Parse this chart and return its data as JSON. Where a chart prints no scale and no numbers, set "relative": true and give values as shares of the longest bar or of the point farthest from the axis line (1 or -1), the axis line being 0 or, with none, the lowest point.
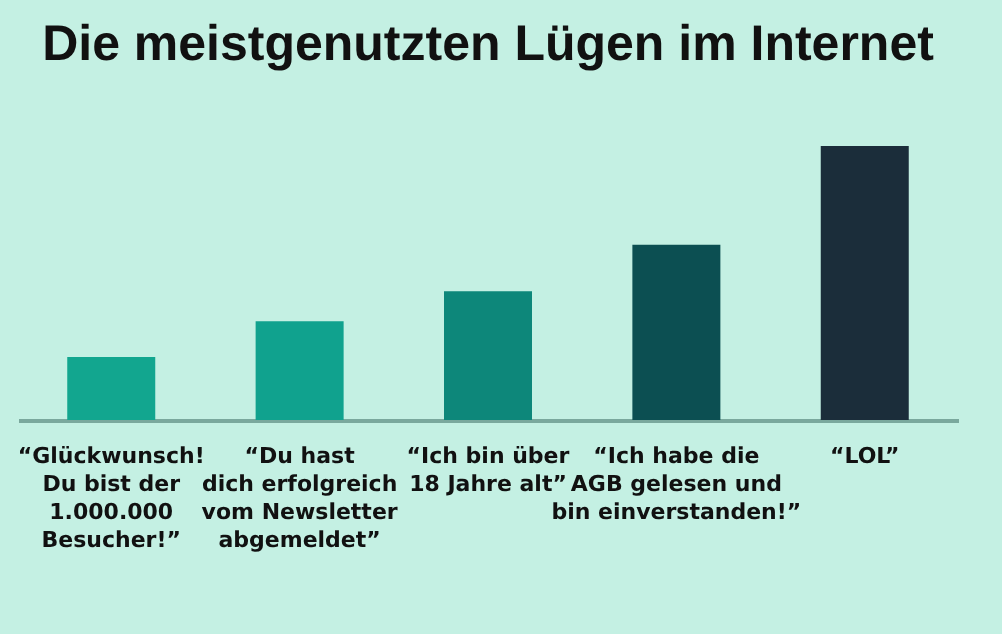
{
  "chart_data": {
    "type": "bar",
    "title": "Die meistgenutzten Lügen im Internet",
    "relative": true,
    "categories": [
      "“Glückwunsch!\nDu bist der\n1.000.000\nBesucher!”",
      "“Du hast\ndich erfolgreich\nvom Newsletter\nabgemeldet”",
      "“Ich bin über\n18 Jahre alt”",
      "“Ich habe die\nAGB gelesen und\nbin einverstanden!”",
      "“LOL”"
    ],
    "values": [
      0.23,
      0.36,
      0.47,
      0.64,
      1
    ],
    "colors": [
      "#12a68f",
      "#10a28e",
      "#0d877a",
      "#0c4f52",
      "#1b2d3a"
    ]
  }
}
